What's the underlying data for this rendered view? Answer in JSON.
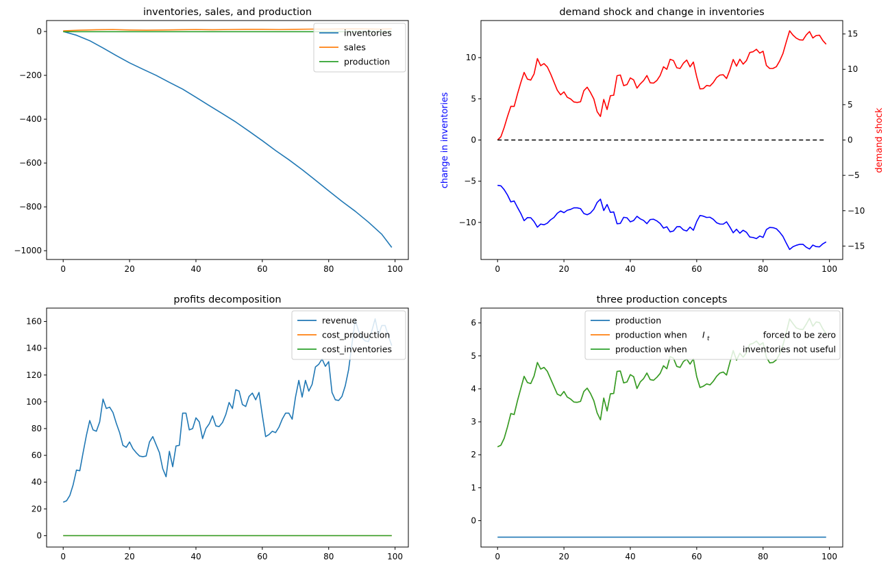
{
  "chart_data": [
    {
      "type": "line",
      "title": "inventories, sales, and production",
      "xlim": [
        -5,
        104
      ],
      "ylim": [
        -1040,
        50
      ],
      "xticks": [
        0,
        20,
        40,
        60,
        80,
        100
      ],
      "yticks": [
        0,
        -200,
        -400,
        -600,
        -800,
        -1000
      ],
      "ytick_labels": [
        "0",
        "−200",
        "−400",
        "−600",
        "−800",
        "−1000"
      ],
      "legend": "top-right",
      "series": [
        {
          "name": "inventories",
          "color": "#1f77b4",
          "points": [
            [
              0,
              0
            ],
            [
              4,
              -17
            ],
            [
              8,
              -42
            ],
            [
              12,
              -75
            ],
            [
              16,
              -110
            ],
            [
              20,
              -143
            ],
            [
              24,
              -172
            ],
            [
              28,
              -200
            ],
            [
              32,
              -232
            ],
            [
              36,
              -263
            ],
            [
              40,
              -300
            ],
            [
              44,
              -338
            ],
            [
              48,
              -375
            ],
            [
              52,
              -413
            ],
            [
              56,
              -455
            ],
            [
              60,
              -498
            ],
            [
              64,
              -543
            ],
            [
              68,
              -585
            ],
            [
              72,
              -630
            ],
            [
              76,
              -678
            ],
            [
              80,
              -727
            ],
            [
              84,
              -775
            ],
            [
              88,
              -820
            ],
            [
              92,
              -870
            ],
            [
              96,
              -925
            ],
            [
              99,
              -985
            ]
          ]
        },
        {
          "name": "sales",
          "color": "#ff7f0e",
          "points": [
            [
              0,
              3
            ],
            [
              5,
              6
            ],
            [
              10,
              8
            ],
            [
              15,
              9
            ],
            [
              20,
              7
            ],
            [
              25,
              6
            ],
            [
              30,
              7
            ],
            [
              35,
              8
            ],
            [
              40,
              9
            ],
            [
              45,
              8
            ],
            [
              50,
              9
            ],
            [
              55,
              10
            ],
            [
              60,
              10
            ],
            [
              65,
              9
            ],
            [
              70,
              10
            ],
            [
              75,
              11
            ],
            [
              80,
              11
            ],
            [
              85,
              12
            ],
            [
              90,
              12
            ],
            [
              95,
              11
            ],
            [
              99,
              12
            ]
          ]
        },
        {
          "name": "production",
          "color": "#2ca02c",
          "points": [
            [
              0,
              -1
            ],
            [
              99,
              -1
            ]
          ]
        }
      ]
    },
    {
      "type": "line",
      "title": "demand shock and change in inventories",
      "ylabel": "change in inventories",
      "ylabel_right": "demand shock",
      "xlim": [
        -5,
        104
      ],
      "ylim": [
        -14.5,
        14.5
      ],
      "ylim_right": [
        -16.9,
        16.9
      ],
      "xticks": [
        0,
        20,
        40,
        60,
        80,
        100
      ],
      "yticks": [
        10,
        5,
        0,
        -5,
        -10
      ],
      "ytick_labels": [
        "10",
        "5",
        "0",
        "−5",
        "−10"
      ],
      "yticks_right": [
        15,
        10,
        5,
        0,
        -5,
        -10,
        -15
      ],
      "ytick_labels_right": [
        "15",
        "10",
        "5",
        "0",
        "−5",
        "−10",
        "−15"
      ],
      "series": [
        {
          "name": "",
          "color": "#ff0000",
          "axis": "right",
          "values": [
            0.0,
            0.46,
            1.78,
            3.34,
            4.76,
            4.75,
            6.51,
            8.12,
            9.56,
            8.61,
            8.48,
            9.35,
            11.52,
            10.51,
            10.81,
            10.33,
            9.34,
            8.19,
            7.04,
            6.39,
            6.81,
            6.05,
            5.81,
            5.38,
            5.31,
            5.41,
            6.98,
            7.47,
            6.72,
            5.81,
            4.01,
            3.33,
            5.74,
            4.31,
            6.27,
            6.33,
            9.09,
            9.2,
            7.69,
            7.84,
            8.78,
            8.5,
            7.34,
            7.94,
            8.41,
            9.12,
            8.09,
            8.05,
            8.42,
            9.14,
            10.36,
            10.0,
            11.42,
            11.24,
            10.22,
            10.12,
            10.87,
            11.31,
            10.35,
            11.03,
            8.95,
            7.23,
            7.27,
            7.72,
            7.63,
            8.13,
            8.84,
            9.19,
            9.23,
            8.7,
            9.91,
            11.39,
            10.45,
            11.43,
            10.73,
            11.24,
            12.38,
            12.49,
            12.83,
            12.29,
            12.56,
            10.55,
            10.12,
            10.13,
            10.37,
            11.18,
            12.25,
            13.89,
            15.45,
            14.84,
            14.41,
            14.17,
            14.13,
            14.86,
            15.34,
            14.43,
            14.78,
            14.82,
            14.07,
            13.55
          ]
        },
        {
          "name": "",
          "color": "#0000ff",
          "axis": "left",
          "values": [
            -5.5,
            -5.56,
            -6.03,
            -6.68,
            -7.51,
            -7.4,
            -8.18,
            -8.91,
            -9.79,
            -9.42,
            -9.43,
            -9.9,
            -10.58,
            -10.2,
            -10.29,
            -10.09,
            -9.68,
            -9.4,
            -8.89,
            -8.61,
            -8.82,
            -8.53,
            -8.42,
            -8.23,
            -8.23,
            -8.33,
            -8.92,
            -9.07,
            -8.86,
            -8.4,
            -7.58,
            -7.18,
            -8.56,
            -7.83,
            -8.78,
            -8.73,
            -10.16,
            -10.12,
            -9.38,
            -9.44,
            -9.93,
            -9.77,
            -9.26,
            -9.57,
            -9.76,
            -10.15,
            -9.65,
            -9.61,
            -9.82,
            -10.14,
            -10.69,
            -10.53,
            -11.15,
            -11.04,
            -10.53,
            -10.52,
            -10.91,
            -11.04,
            -10.57,
            -10.95,
            -9.9,
            -9.15,
            -9.24,
            -9.4,
            -9.37,
            -9.62,
            -10.04,
            -10.2,
            -10.21,
            -9.93,
            -10.56,
            -11.26,
            -10.83,
            -11.31,
            -10.95,
            -11.2,
            -11.77,
            -11.83,
            -11.97,
            -11.65,
            -11.82,
            -10.87,
            -10.61,
            -10.64,
            -10.77,
            -11.18,
            -11.71,
            -12.52,
            -13.28,
            -12.95,
            -12.78,
            -12.66,
            -12.65,
            -13.01,
            -13.23,
            -12.75,
            -12.94,
            -12.97,
            -12.6,
            -12.36
          ]
        },
        {
          "name": "",
          "color": "#000000",
          "axis": "left",
          "dash": "dashed",
          "points": [
            [
              0,
              0
            ],
            [
              99,
              0
            ]
          ]
        }
      ]
    },
    {
      "type": "line",
      "title": "profits decomposition",
      "xlim": [
        -5,
        104
      ],
      "ylim": [
        -8.5,
        170
      ],
      "xticks": [
        0,
        20,
        40,
        60,
        80,
        100
      ],
      "yticks": [
        0,
        20,
        40,
        60,
        80,
        100,
        120,
        140,
        160
      ],
      "ytick_labels": [
        "0",
        "20",
        "40",
        "60",
        "80",
        "100",
        "120",
        "140",
        "160"
      ],
      "legend": "top-right",
      "series": [
        {
          "name": "revenue",
          "color": "#1f77b4",
          "values": [
            25.0,
            26.0,
            30.0,
            38.0,
            49.0,
            48.5,
            62.0,
            75.0,
            86.0,
            79.0,
            78.0,
            85.0,
            102.0,
            95.0,
            96.0,
            92.0,
            84.0,
            77.0,
            67.5,
            66.0,
            70.0,
            65.0,
            62.0,
            59.5,
            59.0,
            59.5,
            70.0,
            74.0,
            68.0,
            62.0,
            50.0,
            44.0,
            63.0,
            51.5,
            67.0,
            67.5,
            91.5,
            91.5,
            79.0,
            80.0,
            88.0,
            85.0,
            72.5,
            80.0,
            83.5,
            89.5,
            82.0,
            81.5,
            84.5,
            90.5,
            99.5,
            95.0,
            109.0,
            108.0,
            98.0,
            96.5,
            104.0,
            106.5,
            101.5,
            107.0,
            90.0,
            74.0,
            75.5,
            78.0,
            77.0,
            81.0,
            87.0,
            91.5,
            91.5,
            87.0,
            103.5,
            116.0,
            103.5,
            116.0,
            108.0,
            113.0,
            126.0,
            128.0,
            132.0,
            126.5,
            130.0,
            107.0,
            101.5,
            101.0,
            104.0,
            112.0,
            124.0,
            143.0,
            161.0,
            153.0,
            148.0,
            145.5,
            145.0,
            153.0,
            162.0,
            150.0,
            157.0,
            157.0,
            149.0,
            142.0
          ]
        },
        {
          "name": "cost_production",
          "color": "#ff7f0e",
          "points": [
            [
              0,
              0
            ],
            [
              99,
              0
            ]
          ]
        },
        {
          "name": "cost_inventories",
          "color": "#2ca02c",
          "points": [
            [
              0,
              0
            ],
            [
              99,
              0
            ]
          ]
        }
      ]
    },
    {
      "type": "line",
      "title": "three production concepts",
      "xlim": [
        -5,
        104
      ],
      "ylim": [
        -0.8,
        6.45
      ],
      "xticks": [
        0,
        20,
        40,
        60,
        80,
        100
      ],
      "yticks": [
        0,
        1,
        2,
        3,
        4,
        5,
        6
      ],
      "ytick_labels": [
        "0",
        "1",
        "2",
        "3",
        "4",
        "5",
        "6"
      ],
      "legend": "top-right",
      "series": [
        {
          "name": "production",
          "color": "#1f77b4",
          "points": [
            [
              0,
              -0.5
            ],
            [
              99,
              -0.5
            ]
          ]
        },
        {
          "name": "production when",
          "name_math": "I",
          "name_math_sub": "t",
          "name_tail": "forced to be zero",
          "color": "#ff7f0e",
          "values": [
            2.24,
            2.29,
            2.5,
            2.85,
            3.25,
            3.22,
            3.64,
            4.01,
            4.38,
            4.19,
            4.16,
            4.39,
            4.8,
            4.6,
            4.65,
            4.53,
            4.3,
            4.07,
            3.84,
            3.79,
            3.92,
            3.75,
            3.69,
            3.6,
            3.59,
            3.62,
            3.92,
            4.02,
            3.86,
            3.64,
            3.27,
            3.06,
            3.72,
            3.33,
            3.85,
            3.86,
            4.53,
            4.54,
            4.18,
            4.21,
            4.43,
            4.37,
            4.01,
            4.21,
            4.31,
            4.48,
            4.28,
            4.26,
            4.35,
            4.47,
            4.7,
            4.61,
            4.98,
            4.93,
            4.68,
            4.65,
            4.83,
            4.9,
            4.75,
            4.91,
            4.37,
            4.04,
            4.08,
            4.15,
            4.12,
            4.23,
            4.38,
            4.48,
            4.51,
            4.42,
            4.8,
            5.16,
            4.87,
            5.08,
            4.96,
            5.1,
            5.35,
            5.38,
            5.45,
            5.33,
            5.4,
            4.96,
            4.79,
            4.8,
            4.88,
            5.06,
            5.33,
            5.71,
            6.12,
            5.98,
            5.85,
            5.81,
            5.8,
            5.96,
            6.14,
            5.9,
            6.03,
            6.01,
            5.82,
            5.68
          ]
        },
        {
          "name": "production when",
          "name_tail": "inventories not useful",
          "color": "#2ca02c",
          "values": [
            2.24,
            2.29,
            2.5,
            2.85,
            3.25,
            3.22,
            3.64,
            4.01,
            4.38,
            4.19,
            4.16,
            4.39,
            4.8,
            4.6,
            4.65,
            4.53,
            4.3,
            4.07,
            3.84,
            3.79,
            3.92,
            3.75,
            3.69,
            3.6,
            3.59,
            3.62,
            3.92,
            4.02,
            3.86,
            3.64,
            3.27,
            3.06,
            3.72,
            3.33,
            3.85,
            3.86,
            4.53,
            4.54,
            4.18,
            4.21,
            4.43,
            4.37,
            4.01,
            4.21,
            4.31,
            4.48,
            4.28,
            4.26,
            4.35,
            4.47,
            4.7,
            4.61,
            4.98,
            4.93,
            4.68,
            4.65,
            4.83,
            4.9,
            4.75,
            4.91,
            4.37,
            4.04,
            4.08,
            4.15,
            4.12,
            4.23,
            4.38,
            4.48,
            4.51,
            4.42,
            4.8,
            5.16,
            4.87,
            5.08,
            4.96,
            5.1,
            5.35,
            5.38,
            5.45,
            5.33,
            5.4,
            4.96,
            4.79,
            4.8,
            4.88,
            5.06,
            5.33,
            5.71,
            6.12,
            5.98,
            5.85,
            5.81,
            5.8,
            5.96,
            6.14,
            5.9,
            6.03,
            6.01,
            5.82,
            5.68
          ]
        }
      ]
    }
  ]
}
